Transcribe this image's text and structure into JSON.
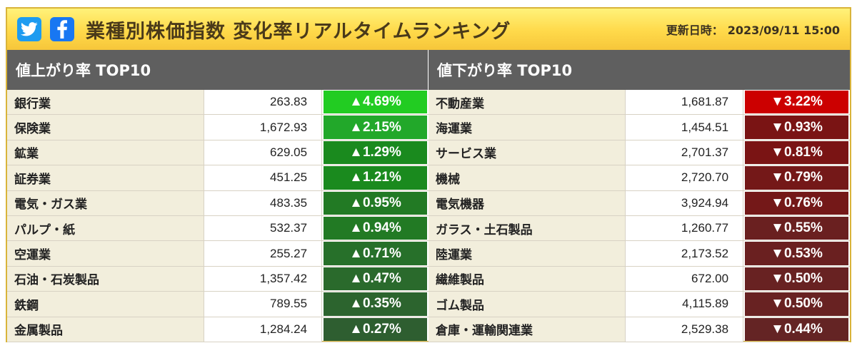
{
  "header": {
    "title": "業種別株価指数 変化率リアルタイムランキング",
    "updated_label": "更新日時：",
    "updated_value": "2023/09/11 15:00",
    "twitter_icon": "twitter-icon",
    "facebook_icon": "facebook-icon"
  },
  "colors": {
    "header_gold": "#ffd94a",
    "panel_header": "#5f5f5f",
    "name_cell": "#f2eedc"
  },
  "gainers": {
    "heading": "値上がり率 TOP10",
    "rows": [
      {
        "name": "銀行業",
        "value": "263.83",
        "change": "▲4.69%",
        "color": "#22cc22"
      },
      {
        "name": "保険業",
        "value": "1,672.93",
        "change": "▲2.15%",
        "color": "#22a82a"
      },
      {
        "name": "鉱業",
        "value": "629.05",
        "change": "▲1.29%",
        "color": "#1a8a1e"
      },
      {
        "name": "証券業",
        "value": "451.25",
        "change": "▲1.21%",
        "color": "#1a8a1e"
      },
      {
        "name": "電気・ガス業",
        "value": "483.35",
        "change": "▲0.95%",
        "color": "#227a24"
      },
      {
        "name": "パルプ・紙",
        "value": "532.37",
        "change": "▲0.94%",
        "color": "#227a24"
      },
      {
        "name": "空運業",
        "value": "255.27",
        "change": "▲0.71%",
        "color": "#27702a"
      },
      {
        "name": "石油・石炭製品",
        "value": "1,357.42",
        "change": "▲0.47%",
        "color": "#2a6a2c"
      },
      {
        "name": "鉄鋼",
        "value": "789.55",
        "change": "▲0.35%",
        "color": "#2c642e"
      },
      {
        "name": "金属製品",
        "value": "1,284.24",
        "change": "▲0.27%",
        "color": "#2e5e30"
      }
    ]
  },
  "losers": {
    "heading": "値下がり率 TOP10",
    "rows": [
      {
        "name": "不動産業",
        "value": "1,681.87",
        "change": "▼3.22%",
        "color": "#cc0000"
      },
      {
        "name": "海運業",
        "value": "1,454.51",
        "change": "▼0.93%",
        "color": "#7a1414"
      },
      {
        "name": "サービス業",
        "value": "2,701.37",
        "change": "▼0.81%",
        "color": "#7a1414"
      },
      {
        "name": "機械",
        "value": "2,720.70",
        "change": "▼0.79%",
        "color": "#741818"
      },
      {
        "name": "電気機器",
        "value": "3,924.94",
        "change": "▼0.76%",
        "color": "#741818"
      },
      {
        "name": "ガラス・土石製品",
        "value": "1,260.77",
        "change": "▼0.55%",
        "color": "#6a2020"
      },
      {
        "name": "陸運業",
        "value": "2,173.52",
        "change": "▼0.53%",
        "color": "#6a2020"
      },
      {
        "name": "繊維製品",
        "value": "672.00",
        "change": "▼0.50%",
        "color": "#682222"
      },
      {
        "name": "ゴム製品",
        "value": "4,115.89",
        "change": "▼0.50%",
        "color": "#682222"
      },
      {
        "name": "倉庫・運輸関連業",
        "value": "2,529.38",
        "change": "▼0.44%",
        "color": "#642424"
      }
    ]
  }
}
